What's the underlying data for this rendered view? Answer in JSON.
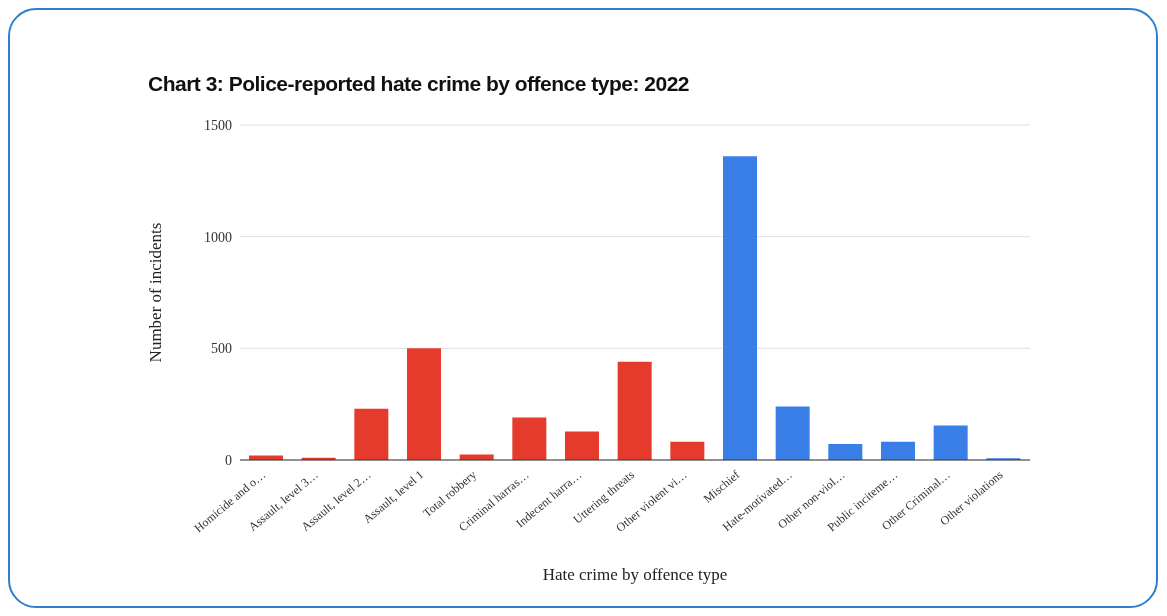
{
  "chart_data": {
    "type": "bar",
    "title": "Chart 3: Police-reported hate crime by offence type: 2022",
    "xlabel": "Hate crime by offence type",
    "ylabel": "Number of incidents",
    "categories": [
      "Homicide and o…",
      "Assault, level 3…",
      "Assault, level 2…",
      "Assault, level 1",
      "Total robbery",
      "Criminal harras…",
      "Indecent harra…",
      "Uttering threats",
      "Other violent vi…",
      "Mischief",
      "Hate-motivated…",
      "Other non-viol…",
      "Public inciteme…",
      "Other Criminal…",
      "Other violations"
    ],
    "values": [
      20,
      10,
      230,
      500,
      25,
      190,
      128,
      440,
      82,
      1360,
      240,
      72,
      82,
      154,
      8
    ],
    "colors": [
      "#e53b2c",
      "#e53b2c",
      "#e53b2c",
      "#e53b2c",
      "#e53b2c",
      "#e53b2c",
      "#e53b2c",
      "#e53b2c",
      "#e53b2c",
      "#3a7ee8",
      "#3a7ee8",
      "#3a7ee8",
      "#3a7ee8",
      "#3a7ee8",
      "#3a7ee8"
    ],
    "ylim": [
      0,
      1500
    ],
    "yticks": [
      0,
      500,
      1000,
      1500
    ],
    "grid": "y"
  }
}
